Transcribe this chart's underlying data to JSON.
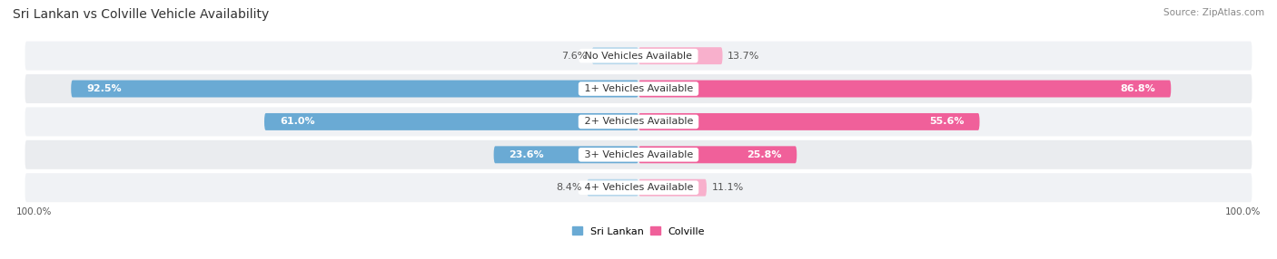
{
  "title": "Sri Lankan vs Colville Vehicle Availability",
  "source": "Source: ZipAtlas.com",
  "categories": [
    "No Vehicles Available",
    "1+ Vehicles Available",
    "2+ Vehicles Available",
    "3+ Vehicles Available",
    "4+ Vehicles Available"
  ],
  "sri_lankan": [
    7.6,
    92.5,
    61.0,
    23.6,
    8.4
  ],
  "colville": [
    13.7,
    86.8,
    55.6,
    25.8,
    11.1
  ],
  "max_value": 100.0,
  "color_sri_lankan_dark": "#6aaad4",
  "color_sri_lankan_light": "#b8d8ec",
  "color_colville_dark": "#f0609a",
  "color_colville_light": "#f8b0cc",
  "row_colors": [
    "#f0f2f5",
    "#e8eaed"
  ],
  "title_fontsize": 10,
  "label_fontsize": 8,
  "val_fontsize": 8
}
